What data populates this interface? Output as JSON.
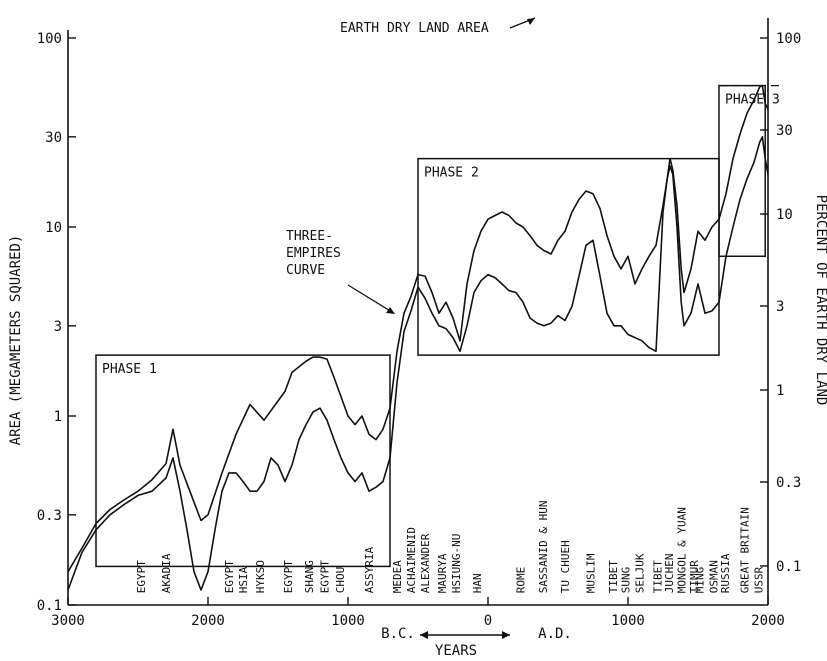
{
  "chart_data": {
    "type": "line",
    "title": "",
    "xlabel": "YEARS",
    "x_era_labels": {
      "bc": "B.C.",
      "ad": "A.D."
    },
    "ylabel_left": "AREA (MEGAMETERS SQUARED)",
    "ylabel_right": "PERCENT OF EARTH DRY LAND",
    "y_scale": "log",
    "xlim": [
      -3000,
      2000
    ],
    "ylim_left": [
      0.1,
      100
    ],
    "ylim_right": [
      0.06,
      100
    ],
    "x_ticks": [
      {
        "value": -3000,
        "label": "3000"
      },
      {
        "value": -2000,
        "label": "2000"
      },
      {
        "value": -1000,
        "label": "1000"
      },
      {
        "value": 0,
        "label": "0"
      },
      {
        "value": 1000,
        "label": "1000"
      },
      {
        "value": 2000,
        "label": "2000"
      }
    ],
    "y_ticks_left": [
      {
        "value": 0.1,
        "label": "0.1"
      },
      {
        "value": 0.3,
        "label": "0.3"
      },
      {
        "value": 1,
        "label": "1"
      },
      {
        "value": 3,
        "label": "3"
      },
      {
        "value": 10,
        "label": "10"
      },
      {
        "value": 30,
        "label": "30"
      },
      {
        "value": 100,
        "label": "100"
      }
    ],
    "y_ticks_right": [
      {
        "value": 0.1,
        "label": "0.1"
      },
      {
        "value": 0.3,
        "label": "0.3"
      },
      {
        "value": 1,
        "label": "1"
      },
      {
        "value": 3,
        "label": "3"
      },
      {
        "value": 10,
        "label": "10"
      },
      {
        "value": 30,
        "label": "30"
      },
      {
        "value": 100,
        "label": "100"
      }
    ],
    "reference_line": {
      "label": "EARTH DRY LAND AREA",
      "value": 56
    },
    "phases": [
      {
        "label": "PHASE 1",
        "x0": -2800,
        "x1": -700,
        "y0": 0.16,
        "y1": 2.1
      },
      {
        "label": "PHASE 2",
        "x0": -500,
        "x1": 1650,
        "y0": 2.1,
        "y1": 23
      },
      {
        "label": "PHASE 3",
        "x0": 1650,
        "x1": 1980,
        "y0": 7.0,
        "y1": 56
      }
    ],
    "annotation": {
      "lines": [
        "THREE-",
        "EMPIRES",
        "CURVE"
      ],
      "x": -650,
      "y": 3.3
    },
    "series": [
      {
        "points": [
          [
            -3000,
            0.15
          ],
          [
            -2900,
            0.2
          ],
          [
            -2800,
            0.27
          ],
          [
            -2700,
            0.32
          ],
          [
            -2600,
            0.36
          ],
          [
            -2500,
            0.4
          ],
          [
            -2400,
            0.46
          ],
          [
            -2300,
            0.56
          ],
          [
            -2250,
            0.85
          ],
          [
            -2200,
            0.55
          ],
          [
            -2100,
            0.35
          ],
          [
            -2050,
            0.28
          ],
          [
            -2000,
            0.3
          ],
          [
            -1900,
            0.5
          ],
          [
            -1800,
            0.8
          ],
          [
            -1700,
            1.15
          ],
          [
            -1600,
            0.95
          ],
          [
            -1500,
            1.2
          ],
          [
            -1450,
            1.35
          ],
          [
            -1400,
            1.7
          ],
          [
            -1300,
            1.95
          ],
          [
            -1250,
            2.05
          ],
          [
            -1200,
            2.05
          ],
          [
            -1150,
            2.0
          ],
          [
            -1100,
            1.6
          ],
          [
            -1000,
            1.0
          ],
          [
            -950,
            0.9
          ],
          [
            -900,
            1.0
          ],
          [
            -850,
            0.8
          ],
          [
            -800,
            0.75
          ],
          [
            -750,
            0.85
          ],
          [
            -700,
            1.1
          ],
          [
            -650,
            2.2
          ],
          [
            -600,
            3.5
          ],
          [
            -550,
            4.3
          ],
          [
            -500,
            5.6
          ],
          [
            -450,
            5.5
          ],
          [
            -400,
            4.5
          ],
          [
            -350,
            3.5
          ],
          [
            -300,
            4.0
          ],
          [
            -250,
            3.3
          ],
          [
            -200,
            2.5
          ],
          [
            -150,
            5.0
          ],
          [
            -100,
            7.5
          ],
          [
            -50,
            9.5
          ],
          [
            0,
            11.0
          ],
          [
            50,
            11.5
          ],
          [
            100,
            12.0
          ],
          [
            150,
            11.5
          ],
          [
            200,
            10.5
          ],
          [
            250,
            10.0
          ],
          [
            300,
            9.0
          ],
          [
            350,
            8.0
          ],
          [
            400,
            7.5
          ],
          [
            450,
            7.2
          ],
          [
            500,
            8.5
          ],
          [
            550,
            9.5
          ],
          [
            600,
            12.0
          ],
          [
            650,
            14.0
          ],
          [
            700,
            15.5
          ],
          [
            750,
            15.0
          ],
          [
            800,
            12.5
          ],
          [
            850,
            9.0
          ],
          [
            900,
            7.0
          ],
          [
            950,
            6.0
          ],
          [
            1000,
            7.0
          ],
          [
            1050,
            5.0
          ],
          [
            1100,
            6.0
          ],
          [
            1150,
            7.0
          ],
          [
            1200,
            8.0
          ],
          [
            1250,
            13.0
          ],
          [
            1280,
            18.0
          ],
          [
            1300,
            23.0
          ],
          [
            1320,
            20.0
          ],
          [
            1350,
            13.0
          ],
          [
            1380,
            6.0
          ],
          [
            1400,
            4.5
          ],
          [
            1450,
            6.0
          ],
          [
            1500,
            9.5
          ],
          [
            1550,
            8.5
          ],
          [
            1600,
            10.0
          ],
          [
            1650,
            11.0
          ],
          [
            1700,
            15.0
          ],
          [
            1750,
            23.0
          ],
          [
            1800,
            31.0
          ],
          [
            1850,
            40.0
          ],
          [
            1900,
            47.0
          ],
          [
            1940,
            55.0
          ],
          [
            1960,
            56.0
          ],
          [
            1980,
            45.0
          ],
          [
            2000,
            42.0
          ]
        ]
      },
      {
        "points": [
          [
            -3000,
            0.12
          ],
          [
            -2900,
            0.19
          ],
          [
            -2800,
            0.25
          ],
          [
            -2700,
            0.3
          ],
          [
            -2600,
            0.34
          ],
          [
            -2500,
            0.38
          ],
          [
            -2400,
            0.4
          ],
          [
            -2300,
            0.47
          ],
          [
            -2250,
            0.6
          ],
          [
            -2200,
            0.4
          ],
          [
            -2150,
            0.25
          ],
          [
            -2100,
            0.15
          ],
          [
            -2050,
            0.12
          ],
          [
            -2000,
            0.15
          ],
          [
            -1950,
            0.25
          ],
          [
            -1900,
            0.4
          ],
          [
            -1850,
            0.5
          ],
          [
            -1800,
            0.5
          ],
          [
            -1750,
            0.45
          ],
          [
            -1700,
            0.4
          ],
          [
            -1650,
            0.4
          ],
          [
            -1600,
            0.45
          ],
          [
            -1550,
            0.6
          ],
          [
            -1500,
            0.55
          ],
          [
            -1450,
            0.45
          ],
          [
            -1400,
            0.55
          ],
          [
            -1350,
            0.75
          ],
          [
            -1300,
            0.9
          ],
          [
            -1250,
            1.05
          ],
          [
            -1200,
            1.1
          ],
          [
            -1150,
            0.95
          ],
          [
            -1100,
            0.75
          ],
          [
            -1050,
            0.6
          ],
          [
            -1000,
            0.5
          ],
          [
            -950,
            0.45
          ],
          [
            -900,
            0.5
          ],
          [
            -850,
            0.4
          ],
          [
            -800,
            0.42
          ],
          [
            -750,
            0.45
          ],
          [
            -700,
            0.6
          ],
          [
            -650,
            1.5
          ],
          [
            -600,
            2.8
          ],
          [
            -550,
            3.6
          ],
          [
            -500,
            4.8
          ],
          [
            -450,
            4.2
          ],
          [
            -400,
            3.5
          ],
          [
            -350,
            3.0
          ],
          [
            -300,
            2.9
          ],
          [
            -250,
            2.6
          ],
          [
            -200,
            2.2
          ],
          [
            -150,
            3.0
          ],
          [
            -100,
            4.5
          ],
          [
            -50,
            5.2
          ],
          [
            0,
            5.6
          ],
          [
            50,
            5.4
          ],
          [
            100,
            5.0
          ],
          [
            150,
            4.6
          ],
          [
            200,
            4.5
          ],
          [
            250,
            4.0
          ],
          [
            300,
            3.3
          ],
          [
            350,
            3.1
          ],
          [
            400,
            3.0
          ],
          [
            450,
            3.1
          ],
          [
            500,
            3.4
          ],
          [
            550,
            3.2
          ],
          [
            600,
            3.8
          ],
          [
            650,
            5.5
          ],
          [
            700,
            8.0
          ],
          [
            750,
            8.5
          ],
          [
            800,
            5.5
          ],
          [
            850,
            3.5
          ],
          [
            900,
            3.0
          ],
          [
            950,
            3.0
          ],
          [
            1000,
            2.7
          ],
          [
            1050,
            2.6
          ],
          [
            1100,
            2.5
          ],
          [
            1150,
            2.3
          ],
          [
            1200,
            2.2
          ],
          [
            1250,
            12.0
          ],
          [
            1280,
            18.0
          ],
          [
            1300,
            21.0
          ],
          [
            1320,
            19.0
          ],
          [
            1350,
            10.0
          ],
          [
            1380,
            4.0
          ],
          [
            1400,
            3.0
          ],
          [
            1450,
            3.5
          ],
          [
            1500,
            5.0
          ],
          [
            1550,
            3.5
          ],
          [
            1600,
            3.6
          ],
          [
            1650,
            4.0
          ],
          [
            1700,
            7.0
          ],
          [
            1750,
            10.0
          ],
          [
            1800,
            14.0
          ],
          [
            1850,
            18.0
          ],
          [
            1900,
            22.0
          ],
          [
            1940,
            28.0
          ],
          [
            1960,
            30.0
          ],
          [
            1980,
            23.0
          ],
          [
            2000,
            19.0
          ]
        ]
      }
    ],
    "empire_labels": [
      {
        "text": "EGYPT",
        "x": -2450,
        "y": 0.11
      },
      {
        "text": "AKADIA",
        "x": -2270,
        "y": 0.11
      },
      {
        "text": "EGYPT",
        "x": -1820,
        "y": 0.11
      },
      {
        "text": "HSIA",
        "x": -1720,
        "y": 0.11
      },
      {
        "text": "HYKSO",
        "x": -1600,
        "y": 0.11
      },
      {
        "text": "EGYPT",
        "x": -1400,
        "y": 0.11
      },
      {
        "text": "SHANG",
        "x": -1250,
        "y": 0.11
      },
      {
        "text": "EGYPT",
        "x": -1140,
        "y": 0.11
      },
      {
        "text": "CHOU",
        "x": -1030,
        "y": 0.11
      },
      {
        "text": "ASSYRIA",
        "x": -820,
        "y": 0.11
      },
      {
        "text": "MEDEA",
        "x": -620,
        "y": 0.11
      },
      {
        "text": "ACHAIMENID",
        "x": -520,
        "y": 0.11
      },
      {
        "text": "ALEXANDER",
        "x": -420,
        "y": 0.11
      },
      {
        "text": "MAURYA",
        "x": -300,
        "y": 0.11
      },
      {
        "text": "HSIUNG-NU",
        "x": -200,
        "y": 0.11
      },
      {
        "text": "HAN",
        "x": -50,
        "y": 0.11
      },
      {
        "text": "ROME",
        "x": 260,
        "y": 0.11
      },
      {
        "text": "SASSANID & HUN",
        "x": 420,
        "y": 0.11
      },
      {
        "text": "TU CHUEH",
        "x": 580,
        "y": 0.11
      },
      {
        "text": "MUSLIM",
        "x": 760,
        "y": 0.11
      },
      {
        "text": "TIBET",
        "x": 920,
        "y": 0.11
      },
      {
        "text": "SUNG",
        "x": 1010,
        "y": 0.11
      },
      {
        "text": "SELJUK",
        "x": 1110,
        "y": 0.11
      },
      {
        "text": "TIBET",
        "x": 1240,
        "y": 0.11
      },
      {
        "text": "JUCHEN",
        "x": 1320,
        "y": 0.11
      },
      {
        "text": "MONGOL & YUAN",
        "x": 1410,
        "y": 0.11
      },
      {
        "text": "TIMUR",
        "x": 1500,
        "y": 0.11
      },
      {
        "text": "MING",
        "x": 1540,
        "y": 0.11
      },
      {
        "text": "OSMAN",
        "x": 1640,
        "y": 0.11
      },
      {
        "text": "RUSSIA",
        "x": 1720,
        "y": 0.11
      },
      {
        "text": "GREAT BRITAIN",
        "x": 1860,
        "y": 0.11
      },
      {
        "text": "USSR",
        "x": 1960,
        "y": 0.11
      }
    ]
  }
}
